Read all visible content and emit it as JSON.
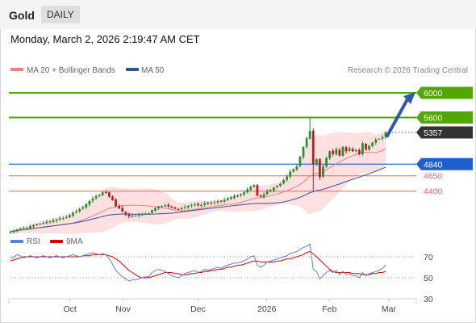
{
  "header": {
    "title": "Gold",
    "period": "DAILY"
  },
  "timestamp": "Monday, March 2, 2026 2:19:47 AM CET",
  "legend": {
    "bollinger": "MA 20 + Bollinger Bands",
    "ma50": "MA 50",
    "credit": "Research © 2026 Trading Central",
    "rsi": "RSI",
    "ma9": "9MA"
  },
  "colors": {
    "up": "#2e8b2e",
    "down": "#b22222",
    "resistance": "#52a800",
    "support_main": "#3c78d8",
    "support_minor": "#e06666",
    "band_fill": "#ffd6d6",
    "ma20": "#f08080",
    "ma50": "#4a5a9a",
    "rsi": "#5b7fd9",
    "rsi_ma": "#d40000",
    "arrow": "#2f5aa8",
    "current_badge": "#333333"
  },
  "chart_data": [
    {
      "type": "candlestick",
      "instrument": "Gold",
      "timeframe": "DAILY",
      "x_labels": [
        "Oct",
        "Nov",
        "Dec",
        "2026",
        "Feb",
        "Mar"
      ],
      "ylim": [
        3700,
        6250
      ],
      "levels": [
        {
          "value": 6000,
          "label": "6000",
          "kind": "resistance"
        },
        {
          "value": 5600,
          "label": "5600",
          "kind": "resistance"
        },
        {
          "value": 5357,
          "label": "5357",
          "kind": "current"
        },
        {
          "value": 4840,
          "label": "4840",
          "kind": "pivot"
        },
        {
          "value": 4650,
          "label": "4650",
          "kind": "support"
        },
        {
          "value": 4400,
          "label": "4400",
          "kind": "support"
        }
      ],
      "target_arrow": {
        "from": 5300,
        "to": 6000
      },
      "closes": [
        3740,
        3758,
        3775,
        3790,
        3800,
        3805,
        3830,
        3850,
        3858,
        3870,
        3885,
        3900,
        3905,
        3925,
        3942,
        3955,
        3960,
        3980,
        4010,
        4050,
        4070,
        4110,
        4140,
        4190,
        4240,
        4280,
        4320,
        4340,
        4380,
        4370,
        4310,
        4255,
        4160,
        4120,
        4070,
        4020,
        3990,
        4005,
        4000,
        4015,
        4025,
        4035,
        4040,
        4090,
        4120,
        4150,
        4160,
        4170,
        4150,
        4130,
        4115,
        4105,
        4125,
        4140,
        4160,
        4175,
        4185,
        4170,
        4175,
        4200,
        4190,
        4215,
        4220,
        4240,
        4230,
        4260,
        4280,
        4300,
        4320,
        4330,
        4350,
        4380,
        4430,
        4470,
        4500,
        4330,
        4310,
        4350,
        4400,
        4420,
        4460,
        4490,
        4520,
        4580,
        4640,
        4720,
        4760,
        4800,
        4960,
        5120,
        5260,
        5380,
        4840,
        4920,
        4630,
        4800,
        4940,
        5050,
        5000,
        5080,
        4980,
        5120,
        5050,
        5100,
        5050,
        5070,
        5000,
        5180,
        5080,
        5140,
        5190,
        5240,
        5250,
        5280,
        5357
      ],
      "rsi": {
        "ylim": [
          30,
          70
        ],
        "ticks": [
          70,
          50,
          30
        ],
        "rsi_values": [
          68,
          70,
          72,
          71,
          69,
          70,
          71,
          70,
          69,
          70,
          71,
          70,
          69,
          70,
          71,
          70,
          69,
          70,
          71,
          72,
          71,
          70,
          71,
          72,
          73,
          74,
          73,
          72,
          73,
          72,
          68,
          63,
          57,
          54,
          51,
          49,
          47,
          48,
          48,
          49,
          50,
          51,
          51,
          55,
          57,
          58,
          57,
          56,
          54,
          52,
          51,
          50,
          52,
          54,
          55,
          56,
          57,
          55,
          56,
          58,
          57,
          58,
          59,
          60,
          59,
          61,
          62,
          63,
          64,
          64,
          65,
          66,
          68,
          70,
          71,
          62,
          60,
          62,
          65,
          66,
          67,
          68,
          69,
          70,
          71,
          73,
          74,
          75,
          77,
          79,
          80,
          82,
          58,
          56,
          49,
          52,
          55,
          57,
          55,
          57,
          53,
          56,
          53,
          54,
          52,
          52,
          50,
          55,
          52,
          54,
          55,
          56,
          57,
          59,
          62
        ],
        "ma_values": [
          66,
          67,
          68,
          69,
          70,
          70,
          70,
          70,
          70,
          70,
          70,
          70,
          70,
          70,
          70,
          70,
          70,
          70,
          70,
          70,
          70,
          70,
          71,
          71,
          71,
          72,
          72,
          72,
          72,
          72,
          71,
          70,
          68,
          66,
          63,
          60,
          57,
          55,
          53,
          51,
          50,
          50,
          50,
          51,
          52,
          53,
          54,
          55,
          55,
          55,
          54,
          54,
          53,
          53,
          53,
          54,
          54,
          55,
          55,
          56,
          56,
          57,
          57,
          58,
          58,
          59,
          60,
          60,
          61,
          62,
          62,
          63,
          64,
          65,
          66,
          66,
          65,
          65,
          65,
          65,
          65,
          66,
          66,
          67,
          68,
          68,
          69,
          70,
          71,
          72,
          74,
          75,
          73,
          70,
          67,
          64,
          61,
          58,
          56,
          55,
          55,
          55,
          55,
          55,
          54,
          54,
          54,
          53,
          53,
          53,
          54,
          54,
          55,
          55,
          56
        ]
      }
    }
  ]
}
